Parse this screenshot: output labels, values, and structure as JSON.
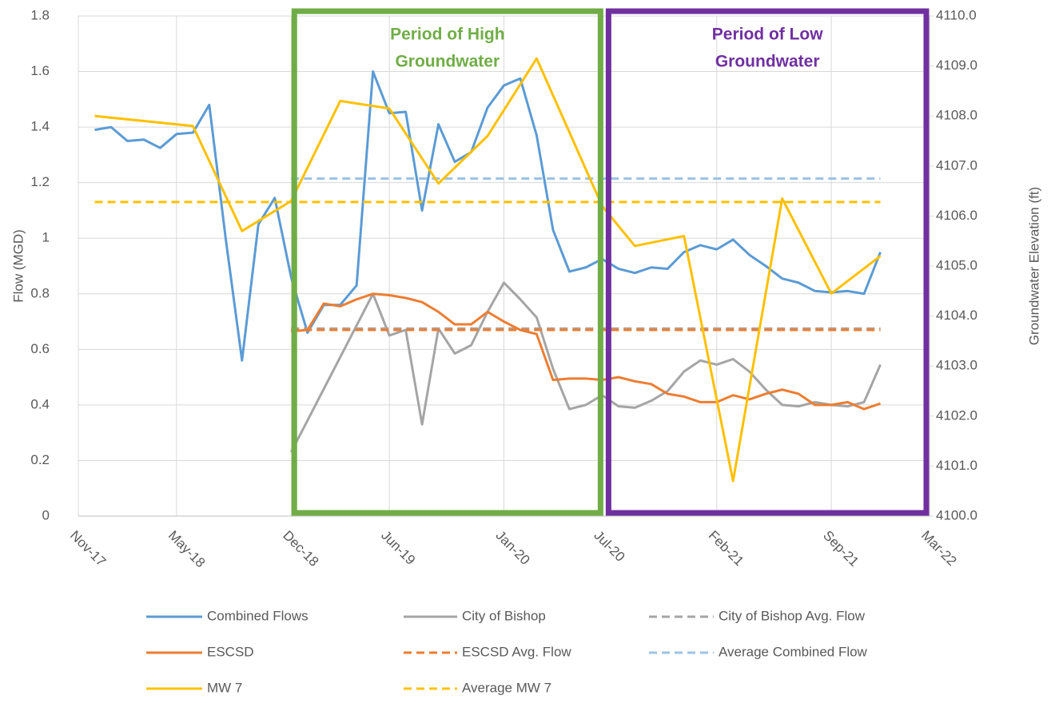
{
  "chart_data": {
    "type": "line",
    "y_label": "Flow (MGD)",
    "y2_label": "Groundwater Elevation (ft)",
    "x": [
      "2017-12",
      "2018-01",
      "2018-02",
      "2018-03",
      "2018-04",
      "2018-05",
      "2018-06",
      "2018-07",
      "2018-08",
      "2018-09",
      "2018-10",
      "2018-11",
      "2018-12",
      "2019-01",
      "2019-02",
      "2019-03",
      "2019-04",
      "2019-05",
      "2019-06",
      "2019-07",
      "2019-08",
      "2019-09",
      "2019-10",
      "2019-11",
      "2019-12",
      "2020-01",
      "2020-02",
      "2020-03",
      "2020-04",
      "2020-05",
      "2020-06",
      "2020-07",
      "2020-08",
      "2020-09",
      "2020-10",
      "2020-11",
      "2020-12",
      "2021-01",
      "2021-02",
      "2021-03",
      "2021-04",
      "2021-05",
      "2021-06",
      "2021-07",
      "2021-08",
      "2021-09",
      "2021-10",
      "2021-11",
      "2021-12"
    ],
    "xlim": [
      "2017-11",
      "2022-03"
    ],
    "xticks": [
      {
        "value": "2017-11",
        "label": "Nov-17"
      },
      {
        "value": "2018-05",
        "label": "May-18"
      },
      {
        "value": "2018-12",
        "label": "Dec-18"
      },
      {
        "value": "2019-06",
        "label": "Jun-19"
      },
      {
        "value": "2020-01",
        "label": "Jan-20"
      },
      {
        "value": "2020-07",
        "label": "Jul-20"
      },
      {
        "value": "2021-02",
        "label": "Feb-21"
      },
      {
        "value": "2021-09",
        "label": "Sep-21"
      },
      {
        "value": "2022-03",
        "label": "Mar-22"
      }
    ],
    "ylim": [
      0,
      1.8
    ],
    "yticks": [
      0,
      0.2,
      0.4,
      0.6,
      0.8,
      1,
      1.2,
      1.4,
      1.6,
      1.8
    ],
    "y2lim": [
      4100,
      4110
    ],
    "y2ticks": [
      {
        "value": 4100,
        "label": "4100.0"
      },
      {
        "value": 4101,
        "label": "4101.0"
      },
      {
        "value": 4102,
        "label": "4102.0"
      },
      {
        "value": 4103,
        "label": "4103.0"
      },
      {
        "value": 4104,
        "label": "4104.0"
      },
      {
        "value": 4105,
        "label": "4105.0"
      },
      {
        "value": 4106,
        "label": "4106.0"
      },
      {
        "value": 4107,
        "label": "4107.0"
      },
      {
        "value": 4108,
        "label": "4108.0"
      },
      {
        "value": 4109,
        "label": "4109.0"
      },
      {
        "value": 4110,
        "label": "4110.0"
      }
    ],
    "grid": true,
    "legend": "bottom",
    "series": [
      {
        "name": "Combined Flows",
        "color": "#5b9bd5",
        "values": [
          1.39,
          1.4,
          1.35,
          1.355,
          1.325,
          1.375,
          1.38,
          1.48,
          1.0,
          0.56,
          1.05,
          1.145,
          0.86,
          0.66,
          0.76,
          0.76,
          0.83,
          1.6,
          1.45,
          1.455,
          1.1,
          1.41,
          1.275,
          1.31,
          1.47,
          1.55,
          1.575,
          1.37,
          1.03,
          0.88,
          0.895,
          0.925,
          0.89,
          0.875,
          0.895,
          0.89,
          0.95,
          0.975,
          0.96,
          0.995,
          0.94,
          0.9,
          0.855,
          0.84,
          0.81,
          0.805,
          0.81,
          0.8,
          0.95
        ]
      },
      {
        "name": "City of Bishop",
        "color": "#a5a5a5",
        "x": [
          "2018-12",
          "2019-05",
          "2019-06",
          "2019-07",
          "2019-08",
          "2019-09",
          "2019-10",
          "2019-11",
          "2019-12",
          "2020-01",
          "2020-02",
          "2020-03",
          "2020-04",
          "2020-05",
          "2020-06",
          "2020-07",
          "2020-08",
          "2020-09",
          "2020-10",
          "2020-11",
          "2020-12",
          "2021-01",
          "2021-02",
          "2021-03",
          "2021-04",
          "2021-05",
          "2021-06",
          "2021-07",
          "2021-08",
          "2021-09",
          "2021-10",
          "2021-11",
          "2021-12"
        ],
        "values": [
          0.23,
          0.8,
          0.65,
          0.67,
          0.33,
          0.675,
          0.585,
          0.615,
          0.735,
          0.84,
          0.78,
          0.715,
          0.53,
          0.385,
          0.4,
          0.435,
          0.395,
          0.39,
          0.415,
          0.45,
          0.52,
          0.56,
          0.545,
          0.565,
          0.52,
          0.455,
          0.4,
          0.395,
          0.41,
          0.4,
          0.395,
          0.41,
          0.545
        ]
      },
      {
        "name": "City of Bishop Avg. Flow",
        "color": "#a5a5a5",
        "dashed": true,
        "x": [
          "2018-12",
          "2021-12"
        ],
        "values": [
          0.675,
          0.675
        ]
      },
      {
        "name": "ESCSD",
        "color": "#ed7d31",
        "x": [
          "2018-12",
          "2019-01",
          "2019-02",
          "2019-03",
          "2019-04",
          "2019-05",
          "2019-06",
          "2019-07",
          "2019-08",
          "2019-09",
          "2019-10",
          "2019-11",
          "2019-12",
          "2020-01",
          "2020-02",
          "2020-03",
          "2020-04",
          "2020-05",
          "2020-06",
          "2020-07",
          "2020-08",
          "2020-09",
          "2020-10",
          "2020-11",
          "2020-12",
          "2021-01",
          "2021-02",
          "2021-03",
          "2021-04",
          "2021-05",
          "2021-06",
          "2021-07",
          "2021-08",
          "2021-09",
          "2021-10",
          "2021-11",
          "2021-12"
        ],
        "values": [
          0.665,
          0.67,
          0.765,
          0.755,
          0.78,
          0.8,
          0.795,
          0.785,
          0.77,
          0.735,
          0.69,
          0.69,
          0.735,
          0.7,
          0.67,
          0.655,
          0.49,
          0.495,
          0.495,
          0.49,
          0.5,
          0.485,
          0.475,
          0.44,
          0.43,
          0.41,
          0.41,
          0.435,
          0.42,
          0.44,
          0.455,
          0.44,
          0.4,
          0.4,
          0.41,
          0.385,
          0.405
        ]
      },
      {
        "name": "ESCSD Avg. Flow",
        "color": "#ed7d31",
        "dashed": true,
        "x": [
          "2018-12",
          "2021-12"
        ],
        "values": [
          0.67,
          0.67
        ]
      },
      {
        "name": "Average Combined Flow",
        "color": "#9dc3e6",
        "dashed": true,
        "x": [
          "2018-12",
          "2021-12"
        ],
        "values": [
          1.215,
          1.215
        ]
      },
      {
        "name": "MW 7",
        "color": "#ffc000",
        "axis": "y2",
        "x": [
          "2017-12",
          "2018-06",
          "2018-09",
          "2018-12",
          "2019-03",
          "2019-06",
          "2019-09",
          "2019-12",
          "2020-03",
          "2020-07",
          "2020-09",
          "2020-12",
          "2021-03",
          "2021-06",
          "2021-09",
          "2021-12"
        ],
        "values": [
          4108.0,
          4107.8,
          4105.7,
          4106.3,
          4108.3,
          4108.15,
          4106.65,
          4107.6,
          4109.15,
          4106.2,
          4105.4,
          4105.6,
          4100.7,
          4106.35,
          4104.45,
          4105.2
        ]
      },
      {
        "name": "Average MW 7",
        "color": "#ffc000",
        "dashed": true,
        "axis": "y2",
        "x": [
          "2017-12",
          "2021-12"
        ],
        "values": [
          4106.28,
          4106.28
        ]
      }
    ],
    "annotations": [
      {
        "lines": [
          "Period of High",
          "Groundwater"
        ],
        "color": "#70ad47",
        "x": [
          "2018-12",
          "2020-07"
        ]
      },
      {
        "lines": [
          "Period of Low",
          "Groundwater"
        ],
        "color": "#7030a0",
        "x": [
          "2020-07",
          "2022-03"
        ]
      }
    ]
  }
}
